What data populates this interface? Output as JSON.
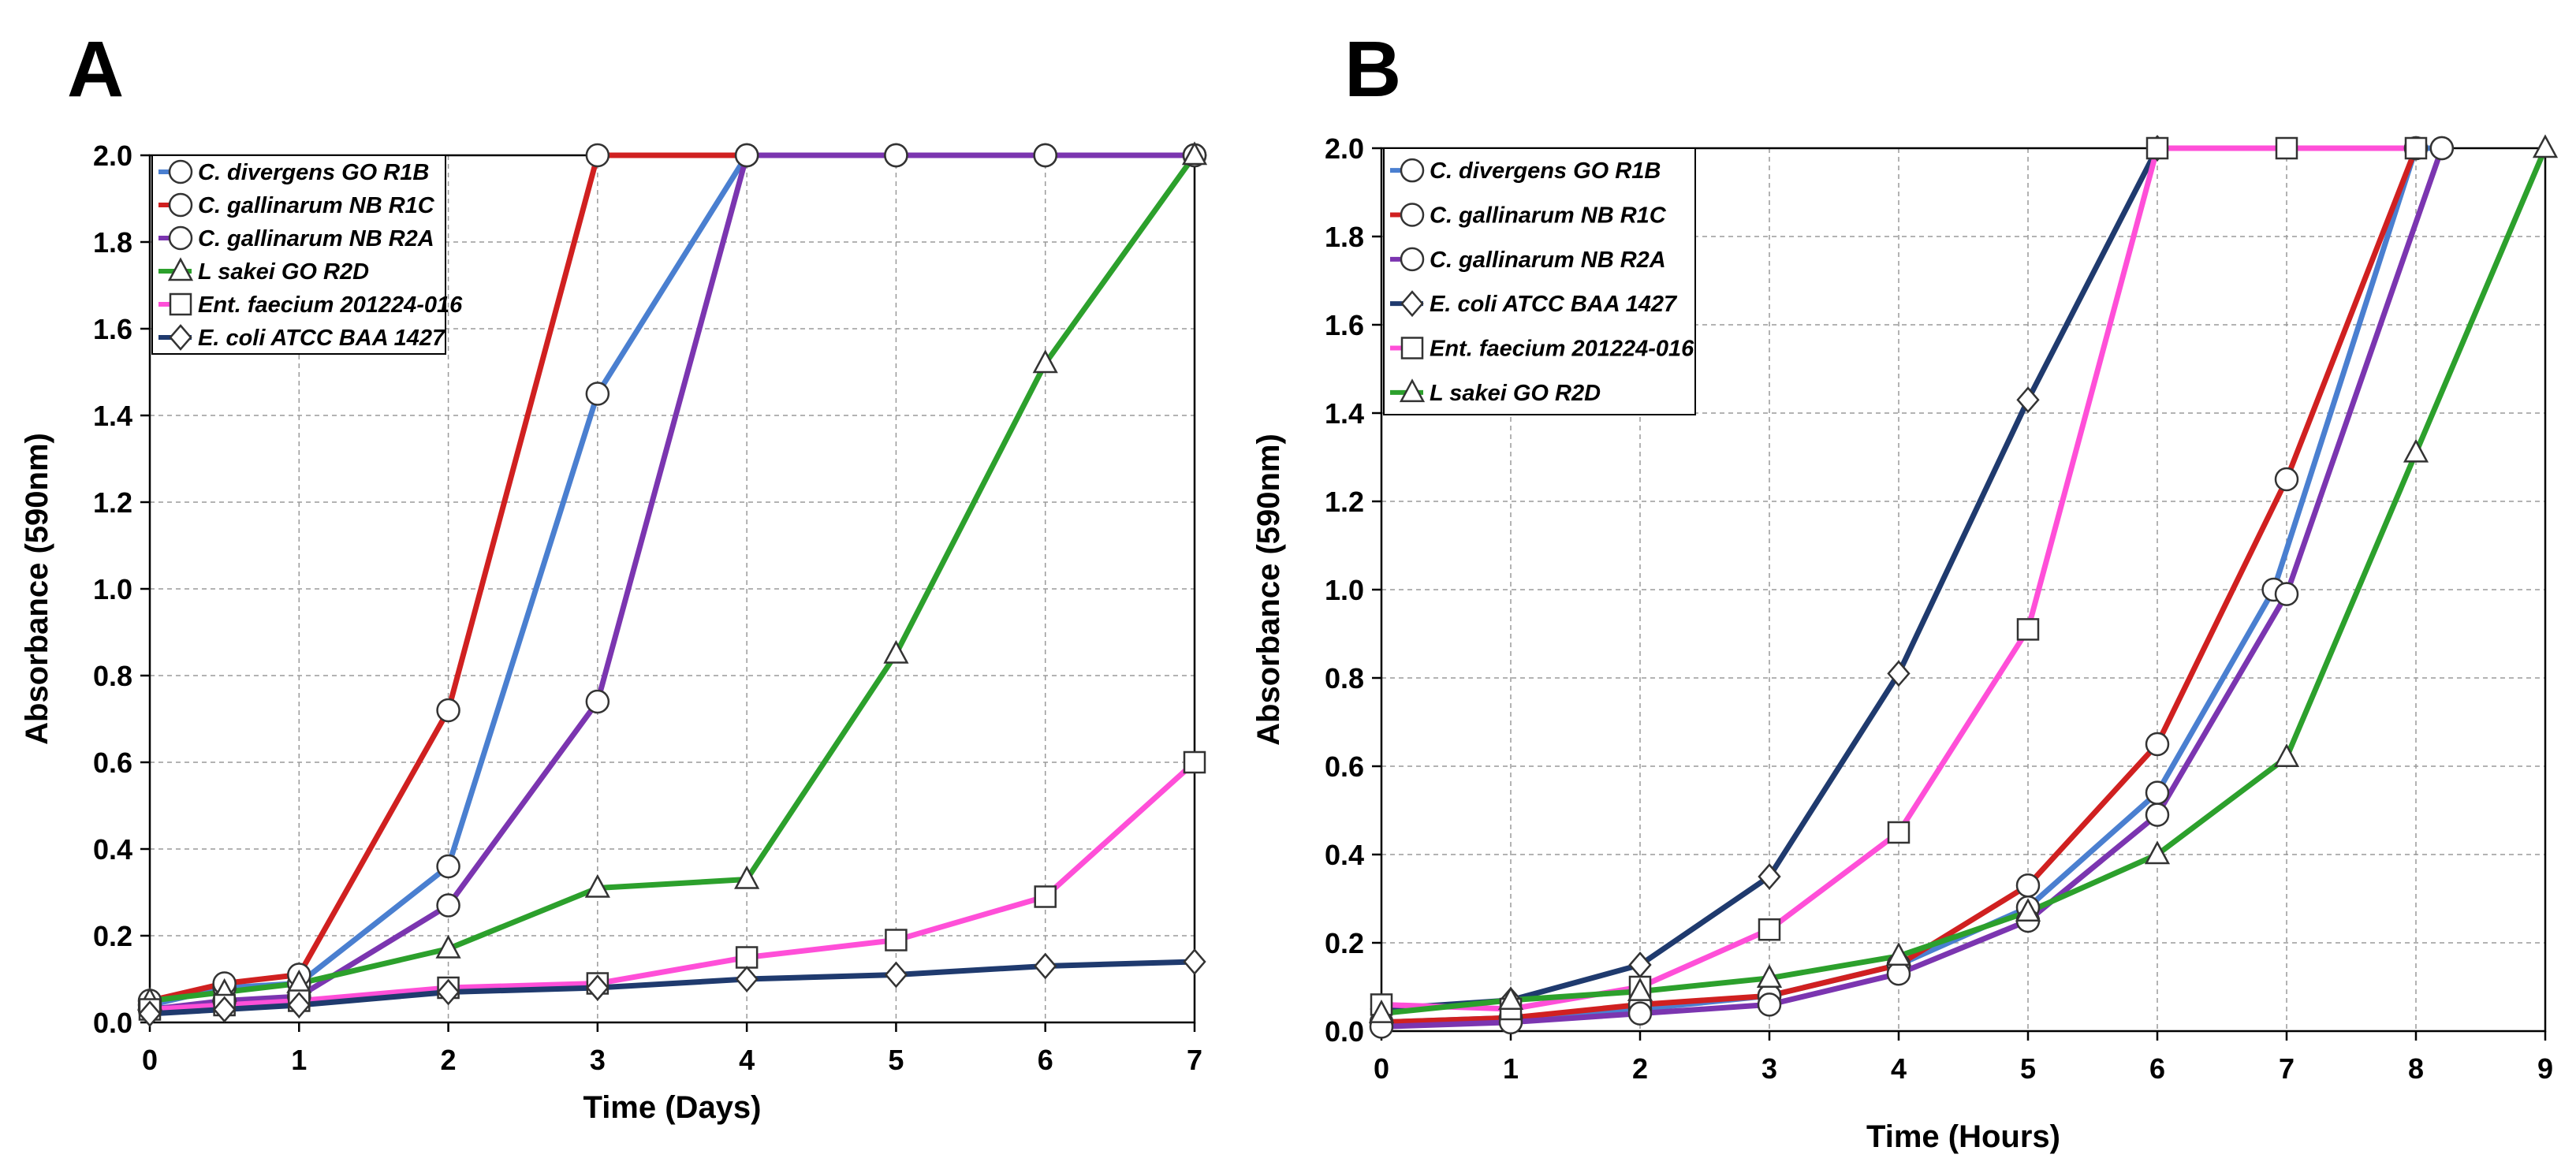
{
  "chart_data": [
    {
      "type": "line",
      "panel": "A",
      "xlabel": "Time (Days)",
      "ylabel": "Absorbance (590nm)",
      "xlim": [
        0,
        7
      ],
      "ylim": [
        0,
        2.0
      ],
      "x_ticks": [
        "0",
        "1",
        "2",
        "3",
        "4",
        "5",
        "6",
        "7"
      ],
      "y_ticks": [
        "0.0",
        "0.2",
        "0.4",
        "0.6",
        "0.8",
        "1.0",
        "1.2",
        "1.4",
        "1.6",
        "1.8",
        "2.0"
      ],
      "grid": true,
      "legend_position": "top-left",
      "series": [
        {
          "name": "C. divergens GO R1B",
          "color": "#4a7fd0",
          "marker": "circle",
          "points": [
            [
              0,
              0.04
            ],
            [
              0.5,
              0.08
            ],
            [
              1,
              0.09
            ],
            [
              2,
              0.36
            ],
            [
              3,
              1.45
            ],
            [
              4,
              2.0
            ],
            [
              5,
              2.0
            ],
            [
              6,
              2.0
            ],
            [
              7,
              2.0
            ]
          ]
        },
        {
          "name": "C. gallinarum NB R1C",
          "color": "#d02020",
          "marker": "circle",
          "points": [
            [
              0,
              0.05
            ],
            [
              0.5,
              0.09
            ],
            [
              1,
              0.11
            ],
            [
              2,
              0.72
            ],
            [
              3,
              2.0
            ],
            [
              4,
              2.0
            ],
            [
              5,
              2.0
            ],
            [
              6,
              2.0
            ],
            [
              7,
              2.0
            ]
          ]
        },
        {
          "name": "C. gallinarum NB R2A",
          "color": "#7b35b0",
          "marker": "circle",
          "points": [
            [
              0,
              0.03
            ],
            [
              0.5,
              0.05
            ],
            [
              1,
              0.06
            ],
            [
              2,
              0.27
            ],
            [
              3,
              0.74
            ],
            [
              4,
              2.0
            ],
            [
              5,
              2.0
            ],
            [
              6,
              2.0
            ],
            [
              7,
              2.0
            ]
          ]
        },
        {
          "name": "L sakei GO R2D",
          "color": "#2ca02c",
          "marker": "triangle",
          "points": [
            [
              0,
              0.05
            ],
            [
              0.5,
              0.07
            ],
            [
              1,
              0.09
            ],
            [
              2,
              0.17
            ],
            [
              3,
              0.31
            ],
            [
              4,
              0.33
            ],
            [
              5,
              0.85
            ],
            [
              6,
              1.52
            ],
            [
              7,
              2.0
            ]
          ]
        },
        {
          "name": "Ent. faecium 201224-016",
          "color": "#ff4fd8",
          "marker": "square",
          "points": [
            [
              0,
              0.03
            ],
            [
              0.5,
              0.04
            ],
            [
              1,
              0.05
            ],
            [
              2,
              0.08
            ],
            [
              3,
              0.09
            ],
            [
              4,
              0.15
            ],
            [
              5,
              0.19
            ],
            [
              6,
              0.29
            ],
            [
              7,
              0.6
            ]
          ]
        },
        {
          "name": "E. coli ATCC BAA 1427",
          "color": "#1f3a6e",
          "marker": "diamond",
          "points": [
            [
              0,
              0.02
            ],
            [
              0.5,
              0.03
            ],
            [
              1,
              0.04
            ],
            [
              2,
              0.07
            ],
            [
              3,
              0.08
            ],
            [
              4,
              0.1
            ],
            [
              5,
              0.11
            ],
            [
              6,
              0.13
            ],
            [
              7,
              0.14
            ]
          ]
        }
      ]
    },
    {
      "type": "line",
      "panel": "B",
      "xlabel": "Time (Hours)",
      "ylabel": "Absorbance (590nm)",
      "xlim": [
        0,
        9
      ],
      "ylim": [
        0,
        2.0
      ],
      "x_ticks": [
        "0",
        "1",
        "2",
        "3",
        "4",
        "5",
        "6",
        "7",
        "8",
        "9"
      ],
      "y_ticks": [
        "0.0",
        "0.2",
        "0.4",
        "0.6",
        "0.8",
        "1.0",
        "1.2",
        "1.4",
        "1.6",
        "1.8",
        "2.0"
      ],
      "grid": true,
      "legend_position": "top-left",
      "series": [
        {
          "name": "C. divergens GO R1B",
          "color": "#4a7fd0",
          "marker": "circle",
          "points": [
            [
              0,
              0.02
            ],
            [
              1,
              0.03
            ],
            [
              2,
              0.05
            ],
            [
              3,
              0.08
            ],
            [
              4,
              0.15
            ],
            [
              5,
              0.28
            ],
            [
              6,
              0.54
            ],
            [
              6.9,
              1.0
            ],
            [
              8,
              2.0
            ],
            [
              8.2,
              2.0
            ]
          ]
        },
        {
          "name": "C. gallinarum NB R1C",
          "color": "#d02020",
          "marker": "circle",
          "points": [
            [
              0,
              0.02
            ],
            [
              1,
              0.03
            ],
            [
              2,
              0.06
            ],
            [
              3,
              0.08
            ],
            [
              4,
              0.15
            ],
            [
              5,
              0.33
            ],
            [
              6,
              0.65
            ],
            [
              7,
              1.25
            ],
            [
              8,
              2.0
            ]
          ]
        },
        {
          "name": "C. gallinarum NB R2A",
          "color": "#7b35b0",
          "marker": "circle",
          "points": [
            [
              0,
              0.01
            ],
            [
              1,
              0.02
            ],
            [
              2,
              0.04
            ],
            [
              3,
              0.06
            ],
            [
              4,
              0.13
            ],
            [
              5,
              0.25
            ],
            [
              6,
              0.49
            ],
            [
              7,
              0.99
            ],
            [
              8.2,
              2.0
            ]
          ]
        },
        {
          "name": "E. coli ATCC BAA 1427",
          "color": "#1f3a6e",
          "marker": "diamond",
          "points": [
            [
              0,
              0.05
            ],
            [
              1,
              0.07
            ],
            [
              2,
              0.15
            ],
            [
              3,
              0.35
            ],
            [
              4,
              0.81
            ],
            [
              5,
              1.43
            ],
            [
              6,
              2.0
            ]
          ]
        },
        {
          "name": "Ent. faecium 201224-016",
          "color": "#ff4fd8",
          "marker": "square",
          "points": [
            [
              0,
              0.06
            ],
            [
              1,
              0.05
            ],
            [
              2,
              0.1
            ],
            [
              3,
              0.23
            ],
            [
              4,
              0.45
            ],
            [
              5,
              0.91
            ],
            [
              6,
              2.0
            ],
            [
              7,
              2.0
            ],
            [
              8,
              2.0
            ]
          ]
        },
        {
          "name": "L sakei GO R2D",
          "color": "#2ca02c",
          "marker": "triangle",
          "points": [
            [
              0,
              0.04
            ],
            [
              1,
              0.07
            ],
            [
              2,
              0.09
            ],
            [
              3,
              0.12
            ],
            [
              4,
              0.17
            ],
            [
              5,
              0.27
            ],
            [
              6,
              0.4
            ],
            [
              7,
              0.62
            ],
            [
              8,
              1.31
            ],
            [
              9,
              2.0
            ]
          ]
        }
      ]
    }
  ]
}
